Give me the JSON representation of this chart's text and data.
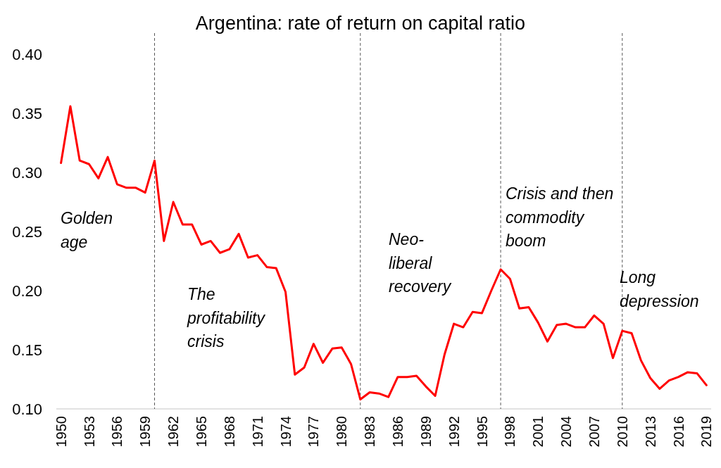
{
  "chart_data": {
    "type": "line",
    "title": "Argentina: rate of return on capital ratio",
    "x": [
      1950,
      1951,
      1952,
      1953,
      1954,
      1955,
      1956,
      1957,
      1958,
      1959,
      1960,
      1961,
      1962,
      1963,
      1964,
      1965,
      1966,
      1967,
      1968,
      1969,
      1970,
      1971,
      1972,
      1973,
      1974,
      1975,
      1976,
      1977,
      1978,
      1979,
      1980,
      1981,
      1982,
      1983,
      1984,
      1985,
      1986,
      1987,
      1988,
      1989,
      1990,
      1991,
      1992,
      1993,
      1994,
      1995,
      1996,
      1997,
      1998,
      1999,
      2000,
      2001,
      2002,
      2003,
      2004,
      2005,
      2006,
      2007,
      2008,
      2009,
      2010,
      2011,
      2012,
      2013,
      2014,
      2015,
      2016,
      2017,
      2018,
      2019
    ],
    "series": [
      {
        "color": "#ff0000",
        "values": [
          0.308,
          0.356,
          0.31,
          0.307,
          0.295,
          0.313,
          0.29,
          0.287,
          0.287,
          0.283,
          0.31,
          0.242,
          0.275,
          0.256,
          0.256,
          0.239,
          0.242,
          0.232,
          0.235,
          0.248,
          0.228,
          0.23,
          0.22,
          0.219,
          0.199,
          0.129,
          0.135,
          0.155,
          0.139,
          0.151,
          0.152,
          0.138,
          0.108,
          0.114,
          0.113,
          0.11,
          0.127,
          0.127,
          0.128,
          0.119,
          0.111,
          0.146,
          0.172,
          0.169,
          0.182,
          0.181,
          0.2,
          0.218,
          0.21,
          0.185,
          0.186,
          0.173,
          0.157,
          0.171,
          0.172,
          0.169,
          0.169,
          0.179,
          0.172,
          0.143,
          0.166,
          0.164,
          0.141,
          0.126,
          0.117,
          0.124,
          0.127,
          0.131,
          0.13,
          0.12
        ]
      }
    ],
    "xlim": [
      1949.5,
      2019.5
    ],
    "xticks": [
      1950,
      1953,
      1956,
      1959,
      1962,
      1965,
      1968,
      1971,
      1974,
      1977,
      1980,
      1983,
      1986,
      1989,
      1992,
      1995,
      1998,
      2001,
      2004,
      2007,
      2010,
      2013,
      2016,
      2019
    ],
    "ylim": [
      0.1,
      0.4
    ],
    "yticks": [
      {
        "value": 0.1,
        "label": "0.10"
      },
      {
        "value": 0.15,
        "label": "0.15"
      },
      {
        "value": 0.2,
        "label": "0.20"
      },
      {
        "value": 0.25,
        "label": "0.25"
      },
      {
        "value": 0.3,
        "label": "0.30"
      },
      {
        "value": 0.35,
        "label": "0.35"
      },
      {
        "value": 0.4,
        "label": "0.40"
      }
    ],
    "ref_lines": [
      {
        "axis": "x",
        "value": 1960,
        "color": "#595959",
        "line_style": "dashed"
      },
      {
        "axis": "x",
        "value": 1982,
        "color": "#595959",
        "line_style": "dashed"
      },
      {
        "axis": "x",
        "value": 1997,
        "color": "#595959",
        "line_style": "dashed"
      },
      {
        "axis": "x",
        "value": 2010,
        "color": "#595959",
        "line_style": "dashed"
      }
    ],
    "annotations": [
      "Golden\nage",
      "The\nprofitability\ncrisis",
      "Neo-\nliberal\nrecovery",
      "Crisis and then\ncommodity\nboom",
      "Long\ndepression"
    ],
    "grid": false,
    "marker": "none",
    "line_style": "solid"
  }
}
